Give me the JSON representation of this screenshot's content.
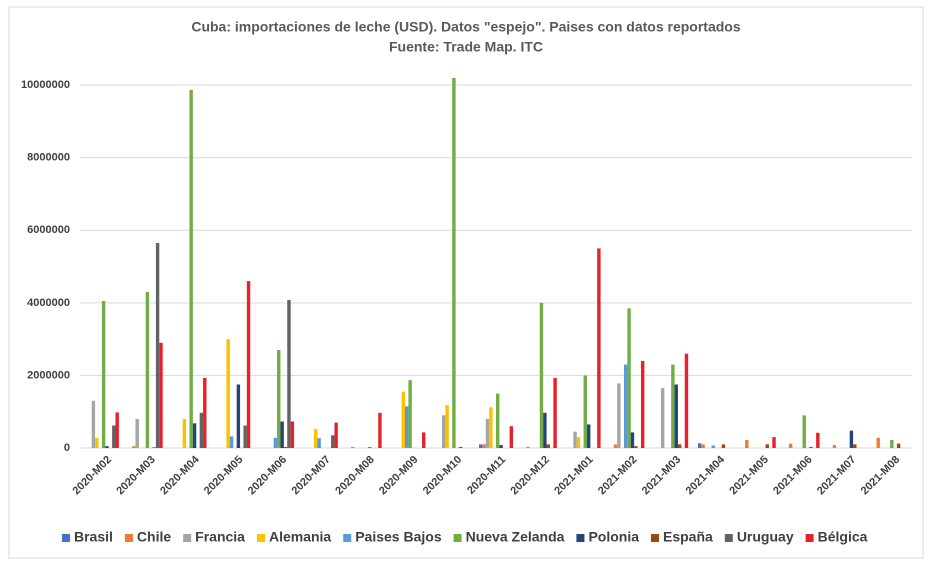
{
  "chart_data": {
    "type": "bar",
    "title": "Cuba: importaciones de leche (USD). Datos \"espejo\". Paises con datos reportados",
    "subtitle": "Fuente: Trade Map. ITC",
    "categories": [
      "2020-M02",
      "2020-M03",
      "2020-M04",
      "2020-M05",
      "2020-M06",
      "2020-M07",
      "2020-M08",
      "2020-M09",
      "2020-M10",
      "2020-M11",
      "2020-M12",
      "2021-M01",
      "2021-M02",
      "2021-M03",
      "2021-M04",
      "2021-M05",
      "2021-M06",
      "2021-M07",
      "2021-M08"
    ],
    "series": [
      {
        "name": "Brasil",
        "color": "#4472c4",
        "values": [
          0,
          0,
          0,
          0,
          0,
          0,
          0,
          0,
          0,
          100000,
          0,
          0,
          0,
          0,
          130000,
          0,
          0,
          0,
          0
        ]
      },
      {
        "name": "Chile",
        "color": "#ed7d31",
        "values": [
          0,
          50000,
          0,
          0,
          0,
          0,
          30000,
          0,
          0,
          100000,
          30000,
          0,
          100000,
          0,
          100000,
          220000,
          120000,
          80000,
          280000
        ]
      },
      {
        "name": "Francia",
        "color": "#a5a5a5",
        "values": [
          1300000,
          800000,
          0,
          0,
          0,
          0,
          0,
          0,
          900000,
          800000,
          0,
          450000,
          1780000,
          1650000,
          0,
          0,
          0,
          0,
          0
        ]
      },
      {
        "name": "Alemania",
        "color": "#ffc000",
        "values": [
          280000,
          0,
          800000,
          3000000,
          0,
          520000,
          0,
          1550000,
          1180000,
          1120000,
          0,
          300000,
          0,
          0,
          0,
          0,
          0,
          0,
          0
        ]
      },
      {
        "name": "Paises Bajos",
        "color": "#5b9bd5",
        "values": [
          0,
          0,
          0,
          320000,
          280000,
          270000,
          0,
          1150000,
          0,
          0,
          0,
          0,
          2300000,
          0,
          70000,
          0,
          0,
          0,
          0
        ]
      },
      {
        "name": "Nueva Zelanda",
        "color": "#70ad47",
        "values": [
          4050000,
          4300000,
          9870000,
          0,
          2700000,
          0,
          0,
          1870000,
          10200000,
          1500000,
          4000000,
          2000000,
          3850000,
          2300000,
          0,
          0,
          900000,
          0,
          220000
        ]
      },
      {
        "name": "Polonia",
        "color": "#264478",
        "values": [
          50000,
          0,
          680000,
          1750000,
          730000,
          0,
          20000,
          0,
          0,
          80000,
          970000,
          650000,
          430000,
          1750000,
          0,
          0,
          0,
          480000,
          0
        ]
      },
      {
        "name": "España",
        "color": "#9e480e",
        "values": [
          0,
          20000,
          0,
          0,
          30000,
          0,
          0,
          0,
          30000,
          0,
          100000,
          0,
          50000,
          100000,
          100000,
          100000,
          30000,
          100000,
          120000
        ]
      },
      {
        "name": "Uruguay",
        "color": "#636363",
        "values": [
          620000,
          5650000,
          970000,
          620000,
          4080000,
          350000,
          0,
          0,
          0,
          0,
          0,
          0,
          0,
          0,
          0,
          0,
          0,
          0,
          0
        ]
      },
      {
        "name": "Bélgica",
        "color": "#e8202a",
        "values": [
          980000,
          2900000,
          1930000,
          4600000,
          730000,
          700000,
          970000,
          430000,
          0,
          600000,
          1930000,
          5500000,
          2400000,
          2600000,
          0,
          300000,
          420000,
          0,
          0
        ]
      }
    ],
    "ylim": [
      0,
      10500000
    ],
    "yticks": [
      0,
      2000000,
      4000000,
      6000000,
      8000000,
      10000000
    ],
    "grid": true
  }
}
